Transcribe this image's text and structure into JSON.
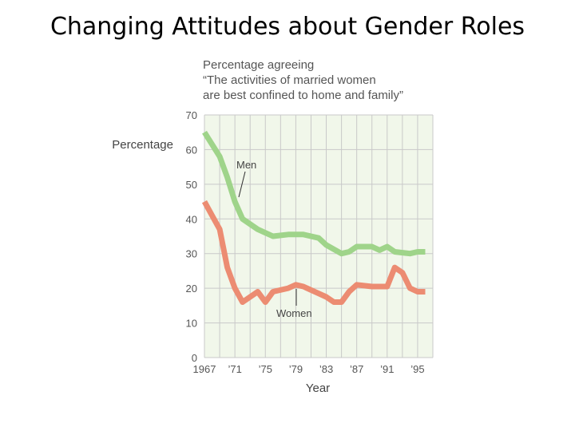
{
  "title": "Changing Attitudes about Gender Roles",
  "chart_data": {
    "type": "line",
    "subtitle": [
      "Percentage agreeing",
      "“The activities of married women",
      "are best confined to home and family”"
    ],
    "xlabel": "Year",
    "ylabel": "Percentage",
    "xlim": [
      1967,
      1997
    ],
    "ylim": [
      0,
      70
    ],
    "yticks": [
      0,
      10,
      20,
      30,
      40,
      50,
      60,
      70
    ],
    "xticks": [
      {
        "value": 1967,
        "label": "1967"
      },
      {
        "value": 1971,
        "label": "’71"
      },
      {
        "value": 1975,
        "label": "’75"
      },
      {
        "value": 1979,
        "label": "’79"
      },
      {
        "value": 1983,
        "label": "’83"
      },
      {
        "value": 1987,
        "label": "’87"
      },
      {
        "value": 1991,
        "label": "’91"
      },
      {
        "value": 1995,
        "label": "’95"
      }
    ],
    "grid": true,
    "series": [
      {
        "name": "Men",
        "color": "#9fd48a",
        "points": [
          [
            1967,
            65
          ],
          [
            1969,
            58
          ],
          [
            1970,
            52
          ],
          [
            1971,
            45
          ],
          [
            1972,
            40
          ],
          [
            1974,
            37
          ],
          [
            1976,
            35
          ],
          [
            1978,
            35.5
          ],
          [
            1980,
            35.5
          ],
          [
            1982,
            34.5
          ],
          [
            1983,
            32.5
          ],
          [
            1985,
            30
          ],
          [
            1986,
            30.5
          ],
          [
            1987,
            32
          ],
          [
            1989,
            32
          ],
          [
            1990,
            31
          ],
          [
            1991,
            32
          ],
          [
            1992,
            30.5
          ],
          [
            1994,
            30
          ],
          [
            1995,
            30.5
          ],
          [
            1996,
            30.5
          ]
        ]
      },
      {
        "name": "Women",
        "color": "#ec8c72",
        "points": [
          [
            1967,
            45
          ],
          [
            1968,
            41
          ],
          [
            1969,
            37
          ],
          [
            1970,
            26
          ],
          [
            1971,
            20
          ],
          [
            1972,
            16
          ],
          [
            1973,
            17.5
          ],
          [
            1974,
            19
          ],
          [
            1975,
            16
          ],
          [
            1976,
            19
          ],
          [
            1978,
            20
          ],
          [
            1979,
            21
          ],
          [
            1980,
            20.5
          ],
          [
            1982,
            18.5
          ],
          [
            1983,
            17.5
          ],
          [
            1984,
            16
          ],
          [
            1985,
            16
          ],
          [
            1986,
            19
          ],
          [
            1987,
            21
          ],
          [
            1989,
            20.5
          ],
          [
            1990,
            20.5
          ],
          [
            1991,
            20.5
          ],
          [
            1992,
            26
          ],
          [
            1993,
            24.5
          ],
          [
            1994,
            20
          ],
          [
            1995,
            19
          ],
          [
            1996,
            19
          ]
        ]
      }
    ]
  }
}
